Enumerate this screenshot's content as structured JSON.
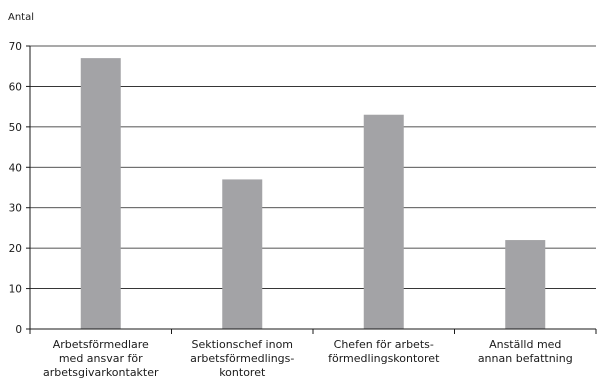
{
  "chart_data": {
    "type": "bar",
    "ylabel": "Antal",
    "xlabel": "",
    "ylim": [
      0,
      70
    ],
    "yticks": [
      0,
      10,
      20,
      30,
      40,
      50,
      60,
      70
    ],
    "grid": true,
    "categories": [
      [
        "Arbetsförmedlare",
        "med ansvar för",
        "arbetsgivarkontakter"
      ],
      [
        "Sektionschef inom",
        "arbetsförmedlings-",
        "kontoret"
      ],
      [
        "Chefen för arbets-",
        "förmedlingskontoret"
      ],
      [
        "Anställd med",
        "annan befattning"
      ]
    ],
    "values": [
      67,
      37,
      53,
      22
    ],
    "bar_color": "#a3a3a6",
    "axis_color": "#1a1a1a"
  }
}
